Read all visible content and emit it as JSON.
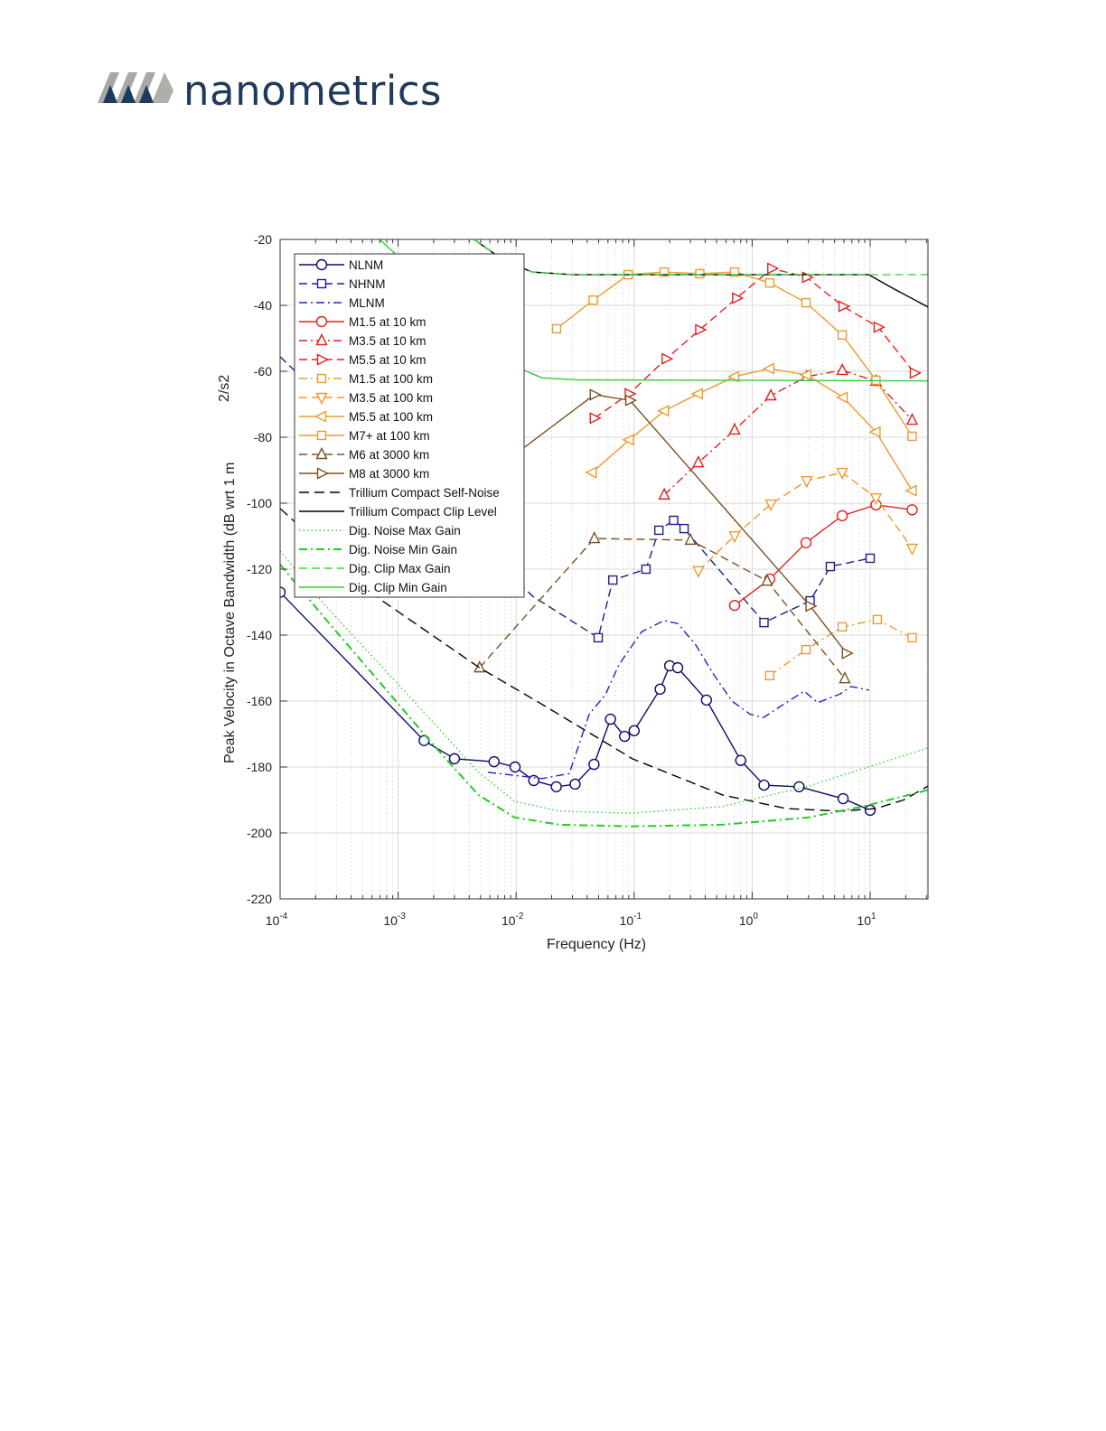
{
  "brand": {
    "name": "nanometrics"
  },
  "chart_data": {
    "type": "line",
    "title": "",
    "xlabel": "Frequency (Hz)",
    "ylabel": "Peak Velocity in Octave Bandwidth (dB wrt 1 m",
    "ylabel_units_suffix": "2/s2",
    "xscale": "log",
    "xlim": [
      0.0001,
      31
    ],
    "ylim": [
      -220,
      -20
    ],
    "yticks": [
      -20,
      -40,
      -60,
      -80,
      -100,
      -120,
      -140,
      -160,
      -180,
      -200,
      -220
    ],
    "xticks": [
      {
        "base": "10",
        "exp": "-4"
      },
      {
        "base": "10",
        "exp": "-3"
      },
      {
        "base": "10",
        "exp": "-2"
      },
      {
        "base": "10",
        "exp": "-1"
      },
      {
        "base": "10",
        "exp": "0"
      },
      {
        "base": "10",
        "exp": "1"
      }
    ],
    "grid": true,
    "legend_position": "top-left",
    "series": [
      {
        "name": "NLNM",
        "color": "#0b0b6e",
        "dash": "solid",
        "marker": "circle",
        "x": [
          0.0001,
          0.00166,
          0.003,
          0.0065,
          0.0098,
          0.0141,
          0.0219,
          0.0316,
          0.0457,
          0.063,
          0.083,
          0.1,
          0.166,
          0.2,
          0.234,
          0.41,
          0.8,
          1.26,
          2.5,
          5.9,
          10
        ],
        "y": [
          -127,
          -172,
          -177.5,
          -178.4,
          -180,
          -184.1,
          -186,
          -185.2,
          -179.2,
          -165.5,
          -170.7,
          -169,
          -156.4,
          -149.3,
          -149.9,
          -159.7,
          -178,
          -185.5,
          -186,
          -189.6,
          -193.1
        ]
      },
      {
        "name": "NHNM",
        "color": "#1f1f8f",
        "dash": "dash",
        "marker": "square",
        "marker_skip": [
          0,
          1
        ],
        "x": [
          0.0001,
          0.0138,
          0.0496,
          0.066,
          0.126,
          0.162,
          0.216,
          0.265,
          1.26,
          3.1,
          4.6,
          10
        ],
        "y": [
          -55.6,
          -128.2,
          -140.8,
          -123.3,
          -120,
          -108.2,
          -105.2,
          -107.7,
          -136.2,
          -129.6,
          -119.2,
          -116.7
        ]
      },
      {
        "name": "MLNM",
        "color": "#2222cc",
        "dash": "dashdot",
        "marker": "none",
        "x": [
          0.00577,
          0.0166,
          0.0282,
          0.0416,
          0.0572,
          0.0743,
          0.1156,
          0.1795,
          0.234,
          0.333,
          0.473,
          0.674,
          0.96,
          1.25,
          1.94,
          2.76,
          3.6,
          5.6,
          6.9,
          9.8
        ],
        "y": [
          -181.6,
          -183.5,
          -182,
          -164,
          -158,
          -149,
          -139,
          -135.6,
          -136.5,
          -143,
          -152,
          -160,
          -164,
          -165,
          -160.5,
          -157,
          -160.5,
          -157.8,
          -155.6,
          -156.7
        ]
      },
      {
        "name": "M1.5 at 10 km",
        "color": "#e51f1f",
        "dash": "solid",
        "marker": "circle",
        "x": [
          0.71,
          1.41,
          2.86,
          5.8,
          11.2,
          22.7
        ],
        "y": [
          -131,
          -123,
          -112,
          -103.8,
          -100.5,
          -102
        ]
      },
      {
        "name": "M3.5 at 10 km",
        "color": "#e51f1f",
        "dash": "dashdot",
        "marker": "triangle-up",
        "x": [
          0.18,
          0.35,
          0.71,
          1.44,
          2.9,
          5.8,
          11.2,
          22.7
        ],
        "y": [
          -97.5,
          -87.7,
          -77.8,
          -67.4,
          -61.6,
          -59.7,
          -63,
          -74.8
        ]
      },
      {
        "name": "M5.5 at 10 km",
        "color": "#e51f1f",
        "dash": "dash",
        "marker": "triangle-right",
        "x": [
          0.046,
          0.091,
          0.187,
          0.36,
          0.74,
          1.47,
          2.9,
          5.9,
          11.7,
          23.7
        ],
        "y": [
          -74.2,
          -66.8,
          -56.2,
          -47.4,
          -37.8,
          -28.8,
          -31.5,
          -40.3,
          -46.6,
          -60.5
        ]
      },
      {
        "name": "M1.5 at 100 km",
        "color": "#ee9a2e",
        "dash": "dashdot",
        "marker": "square",
        "x": [
          1.41,
          2.86,
          5.8,
          11.5,
          22.7
        ],
        "y": [
          -152.3,
          -144.4,
          -137.5,
          -135.3,
          -140.8
        ]
      },
      {
        "name": "M3.5 at 100 km",
        "color": "#ee9a2e",
        "dash": "dash",
        "marker": "triangle-down",
        "x": [
          0.35,
          0.71,
          1.44,
          2.9,
          5.8,
          11.2,
          22.7
        ],
        "y": [
          -120.5,
          -109.9,
          -100.3,
          -93.2,
          -90.7,
          -98.4,
          -113.7
        ]
      },
      {
        "name": "M5.5 at 100 km",
        "color": "#ee9a2e",
        "dash": "solid",
        "marker": "triangle-left",
        "x": [
          0.044,
          0.091,
          0.18,
          0.35,
          0.71,
          1.41,
          2.9,
          5.9,
          11.2,
          22.7
        ],
        "y": [
          -90.7,
          -80.8,
          -72,
          -66.8,
          -61.6,
          -59.2,
          -61.1,
          -67.9,
          -78.4,
          -96.2
        ]
      },
      {
        "name": "M7+ at 100 km",
        "color": "#ee9a2e",
        "dash": "solid",
        "marker": "square",
        "x": [
          0.022,
          0.045,
          0.089,
          0.18,
          0.36,
          0.71,
          1.41,
          2.86,
          5.8,
          11.2,
          22.7
        ],
        "y": [
          -47.1,
          -38.4,
          -30.7,
          -29.9,
          -30.4,
          -29.9,
          -33.2,
          -39.2,
          -49,
          -62.7,
          -79.7
        ]
      },
      {
        "name": "M6 at 3000 km",
        "color": "#7b5223",
        "dash": "dash",
        "marker": "triangle-up",
        "x": [
          0.0049,
          0.046,
          0.3,
          1.34,
          6.1
        ],
        "y": [
          -149.9,
          -110.7,
          -111.2,
          -123.6,
          -153.2
        ]
      },
      {
        "name": "M8 at 3000 km",
        "color": "#7b5223",
        "dash": "solid",
        "marker": "triangle-right",
        "marker_skip": [
          0
        ],
        "x": [
          0.0118,
          0.046,
          0.092,
          3.1,
          6.3
        ],
        "y": [
          -83,
          -67.1,
          -68.8,
          -131.2,
          -145.5
        ]
      },
      {
        "name": "Trillium Compact Self-Noise",
        "color": "#000000",
        "dash": "longdash",
        "marker": "none",
        "x": [
          0.0001,
          0.000241,
          0.000695,
          0.0049,
          0.0166,
          0.0967,
          0.564,
          1.94,
          5.6,
          11.2,
          19.2,
          30.9
        ],
        "y": [
          -101.6,
          -114,
          -129,
          -149.9,
          -161,
          -177.5,
          -188.5,
          -192.6,
          -193.4,
          -192.6,
          -190,
          -185.8
        ]
      },
      {
        "name": "Trillium Compact Clip Level",
        "color": "#000000",
        "dash": "solid",
        "marker": "none",
        "x": [
          0.0044,
          0.0082,
          0.0138,
          0.03,
          9.7,
          15.9,
          30.9
        ],
        "y": [
          -20,
          -26.8,
          -29.9,
          -30.7,
          -30.7,
          -35,
          -40.5
        ]
      },
      {
        "name": "Dig. Noise Max Gain",
        "color": "#3ccc3c",
        "dash": "dot",
        "marker": "none",
        "x": [
          0.0001,
          0.000241,
          0.000695,
          0.002,
          0.0048,
          0.0097,
          0.0233,
          0.0954,
          0.558,
          3.0,
          30.9
        ],
        "y": [
          -114.5,
          -131,
          -148.8,
          -166.6,
          -181.6,
          -190.4,
          -193.4,
          -194,
          -192,
          -185.8,
          -174.2
        ]
      },
      {
        "name": "Dig. Noise Min Gain",
        "color": "#22cc22",
        "dash": "dashdot",
        "marker": "none",
        "x": [
          0.0001,
          0.000241,
          0.000695,
          0.002,
          0.0048,
          0.0097,
          0.0233,
          0.0954,
          0.558,
          3.0,
          8.6,
          30.9
        ],
        "y": [
          -118.6,
          -135,
          -154.2,
          -173.4,
          -188.5,
          -195.3,
          -197.5,
          -198,
          -197.5,
          -195.3,
          -192,
          -187
        ]
      },
      {
        "name": "Dig. Clip Max Gain",
        "color": "#33dd33",
        "dash": "dash",
        "marker": "none",
        "x": [
          0.0044,
          0.0082,
          0.0138,
          0.03,
          30.9
        ],
        "y": [
          -20,
          -26.8,
          -29.9,
          -30.7,
          -30.7
        ]
      },
      {
        "name": "Dig. Clip Min Gain",
        "color": "#33cc33",
        "dash": "solid",
        "marker": "none",
        "x": [
          0.000695,
          0.0117,
          0.0166,
          0.033,
          30.9
        ],
        "y": [
          -20,
          -59.7,
          -62,
          -62.6,
          -62.9
        ]
      }
    ]
  }
}
